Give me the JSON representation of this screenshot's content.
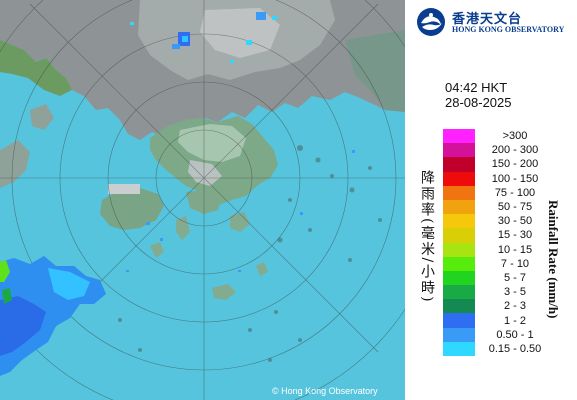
{
  "map": {
    "copyright": "© Hong Kong Observatory"
  },
  "logo": {
    "chinese_name": "香港天文台",
    "english_name": "HONG KONG OBSERVATORY"
  },
  "timestamp": {
    "time": "04:42 HKT",
    "date": "28-08-2025"
  },
  "axis": {
    "chinese": "降雨率(毫米/小時)",
    "english": "Rainfall Rate (mm/h)"
  },
  "legend": [
    {
      "label": ">300",
      "color": "#ff22ff"
    },
    {
      "label": "200 - 300",
      "color": "#d3119a"
    },
    {
      "label": "150 - 200",
      "color": "#c0002a"
    },
    {
      "label": "100 - 150",
      "color": "#ee0b0b"
    },
    {
      "label": "75 - 100",
      "color": "#f07510"
    },
    {
      "label": "50 - 75",
      "color": "#f0a30e"
    },
    {
      "label": "30 - 50",
      "color": "#f5c80c"
    },
    {
      "label": "15 - 30",
      "color": "#d9cf06"
    },
    {
      "label": "10 - 15",
      "color": "#a8e412"
    },
    {
      "label": "7 - 10",
      "color": "#58ec0c"
    },
    {
      "label": "5 - 7",
      "color": "#21d420"
    },
    {
      "label": "3 - 5",
      "color": "#1aaa45"
    },
    {
      "label": "2 - 3",
      "color": "#148a52"
    },
    {
      "label": "1 - 2",
      "color": "#2f6ef2"
    },
    {
      "label": "0.50 - 1",
      "color": "#3a9bf7"
    },
    {
      "label": "0.15 - 0.50",
      "color": "#2fd8ff"
    }
  ]
}
